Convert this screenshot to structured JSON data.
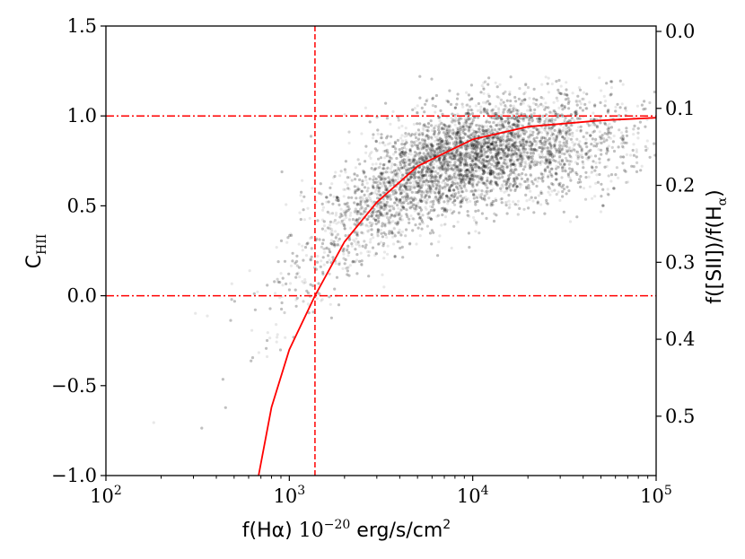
{
  "chart_data": {
    "type": "scatter",
    "title": "",
    "xlabel": {
      "main": "f(Hα) ",
      "math": "10",
      "math_sup": "−20",
      "unit": " erg/s/cm",
      "unit_sup": "2"
    },
    "ylabel": {
      "main": "C",
      "sub": "HII"
    },
    "y2label": {
      "main": "f([SII])/f(H",
      "sub": "α",
      "end": ")"
    },
    "x_scale": "log",
    "xlim": [
      100,
      100000
    ],
    "ylim": [
      -1.0,
      1.5
    ],
    "x_ticks": [
      {
        "value": 100,
        "base": "10",
        "exp": "2"
      },
      {
        "value": 1000,
        "base": "10",
        "exp": "3"
      },
      {
        "value": 10000,
        "base": "10",
        "exp": "4"
      },
      {
        "value": 100000,
        "base": "10",
        "exp": "5"
      }
    ],
    "y_ticks": [
      {
        "value": -1.0,
        "label": "−1.0"
      },
      {
        "value": -0.5,
        "label": "−0.5"
      },
      {
        "value": 0.0,
        "label": "0.0"
      },
      {
        "value": 0.5,
        "label": "0.5"
      },
      {
        "value": 1.0,
        "label": "1.0"
      },
      {
        "value": 1.5,
        "label": "1.5"
      }
    ],
    "y2_ticks": [
      {
        "value": 0.0,
        "label": "0.0"
      },
      {
        "value": 0.1,
        "label": "0.1"
      },
      {
        "value": 0.2,
        "label": "0.2"
      },
      {
        "value": 0.3,
        "label": "0.3"
      },
      {
        "value": 0.4,
        "label": "0.4"
      },
      {
        "value": 0.5,
        "label": "0.5"
      }
    ],
    "y2_mapping": {
      "y_at_0": 1.47,
      "y_at_0_5": -0.67
    },
    "grid": false,
    "legend": "none",
    "scatter_cloud": {
      "color": "#000000",
      "point_opacity": 0.09,
      "n_points": 9000,
      "log_x_center": 3.95,
      "log_x_spread": 0.42,
      "y_at_center": 0.78,
      "y_scatter": 0.15
    },
    "fit_curve": {
      "color": "#ff0000",
      "samples": [
        [
          680,
          -1.0
        ],
        [
          800,
          -0.62
        ],
        [
          1000,
          -0.3
        ],
        [
          1380,
          0.0
        ],
        [
          2000,
          0.3
        ],
        [
          3000,
          0.52
        ],
        [
          5000,
          0.72
        ],
        [
          10000,
          0.87
        ],
        [
          20000,
          0.94
        ],
        [
          50000,
          0.975
        ],
        [
          100000,
          0.99
        ]
      ]
    },
    "reference_lines": {
      "color": "#ff0000",
      "vertical_dashed_x": 1380,
      "horizontal_dashdot_y": [
        1.0,
        0.0
      ]
    }
  }
}
